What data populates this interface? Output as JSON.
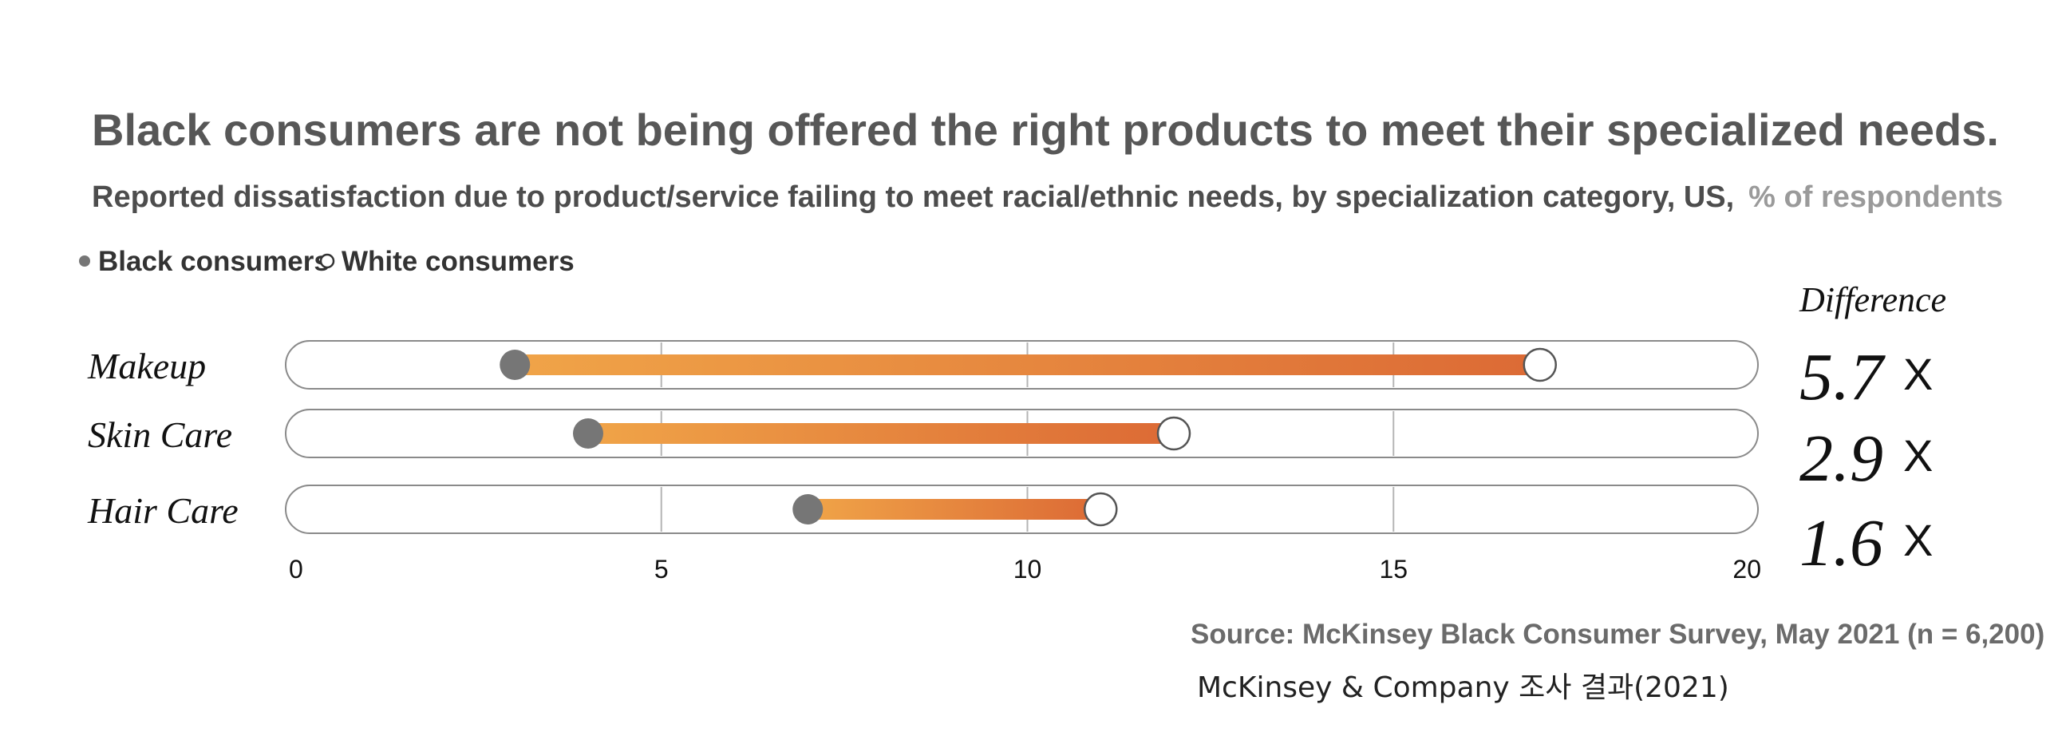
{
  "chart_data": {
    "type": "dumbbell",
    "title": "Black consumers are not being offered the right products to meet their specialized needs.",
    "subtitle": "Reported dissatisfaction due to product/service failing to meet racial/ethnic needs, by specialization category, US,",
    "unit_label": "% of respondents",
    "legend": [
      {
        "name": "Black consumers",
        "marker": "filled"
      },
      {
        "name": "White consumers",
        "marker": "hollow"
      }
    ],
    "legend_placement": "top-left",
    "categories": [
      "Makeup",
      "Skin Care",
      "Hair Care"
    ],
    "series": [
      {
        "name": "Black consumers",
        "values": [
          3,
          4,
          7
        ]
      },
      {
        "name": "White consumers",
        "values": [
          17,
          12,
          11
        ]
      }
    ],
    "difference_header": "Difference",
    "difference": [
      {
        "value": "5.7",
        "suffix": "X"
      },
      {
        "value": "2.9",
        "suffix": "X"
      },
      {
        "value": "1.6",
        "suffix": "X"
      }
    ],
    "xlim": [
      0,
      20
    ],
    "xticks": [
      "0",
      "5",
      "10",
      "15",
      "20"
    ],
    "xtick_values": [
      0,
      5,
      10,
      15,
      20
    ],
    "grid": true,
    "source": "Source: McKinsey Black Consumer Survey, May 2021 (n = 6,200)",
    "credit": "McKinsey & Company 조사 결과(2021)",
    "colors": {
      "bar_start": "#f0a448",
      "bar_end": "#dc6a35",
      "black_marker": "#767676",
      "white_marker": "#ffffff",
      "track_stroke": "#8a8a8a",
      "grid": "#b5b5b5"
    }
  }
}
